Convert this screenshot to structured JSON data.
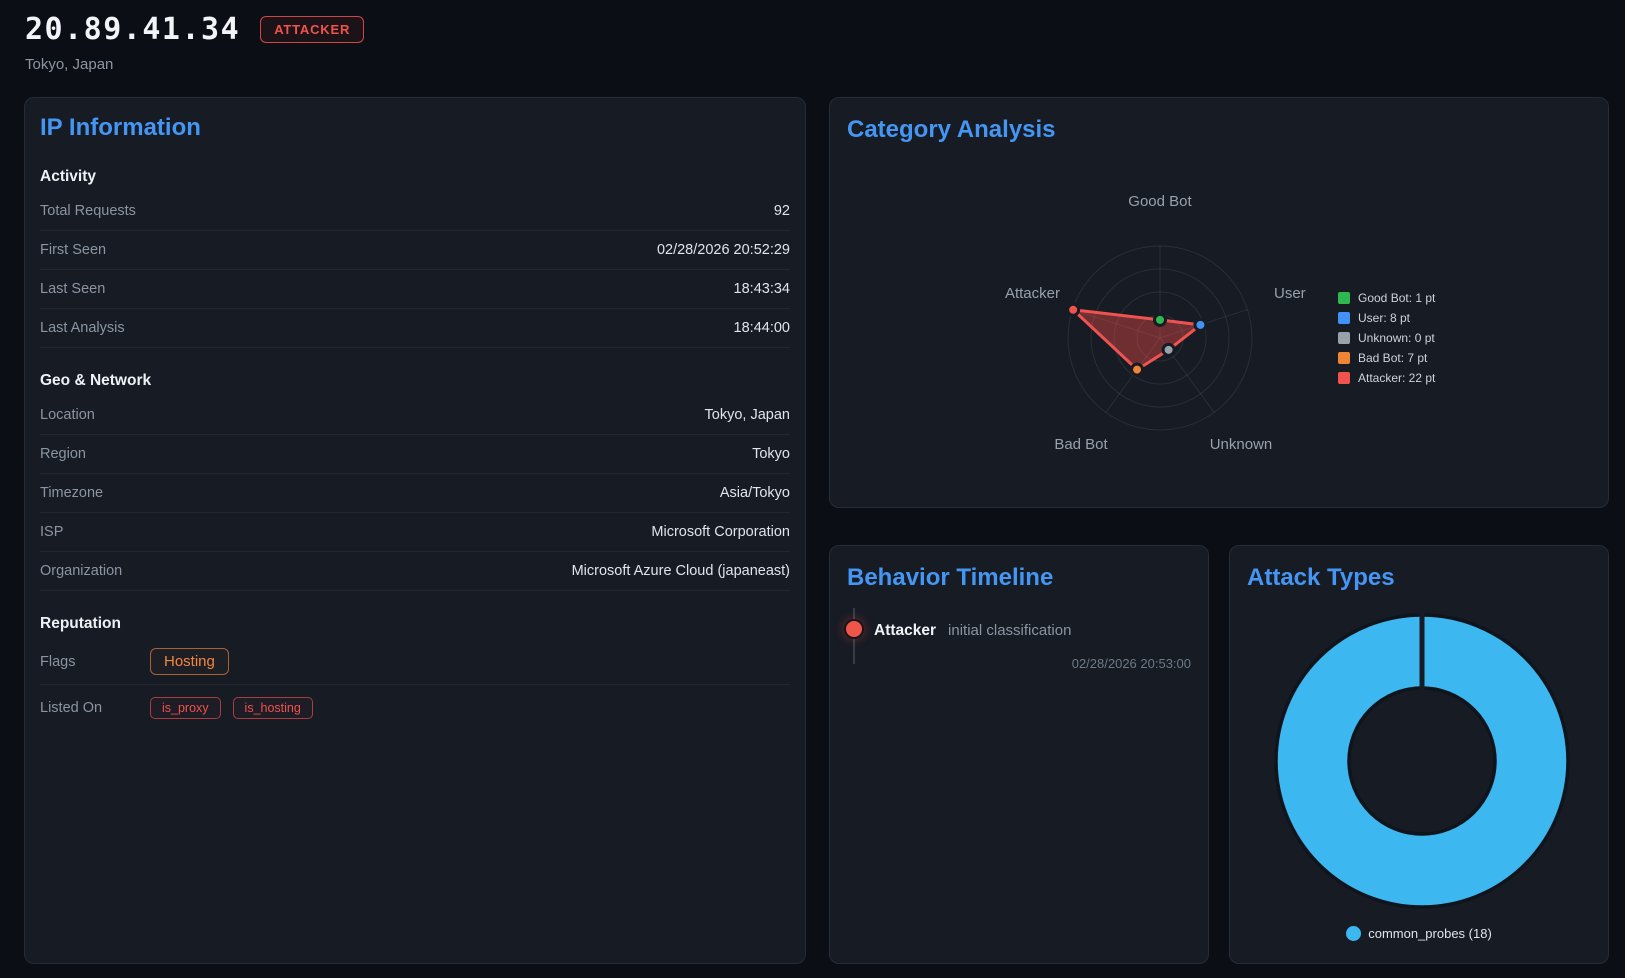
{
  "header": {
    "ip": "20.89.41.34",
    "badge": "ATTACKER",
    "location": "Tokyo, Japan"
  },
  "ip_information": {
    "title": "IP Information",
    "sections": [
      {
        "heading": "Activity",
        "rows": [
          {
            "label": "Total Requests",
            "value": "92"
          },
          {
            "label": "First Seen",
            "value": "02/28/2026 20:52:29"
          },
          {
            "label": "Last Seen",
            "value": "18:43:34"
          },
          {
            "label": "Last Analysis",
            "value": "18:44:00"
          }
        ]
      },
      {
        "heading": "Geo & Network",
        "rows": [
          {
            "label": "Location",
            "value": "Tokyo, Japan"
          },
          {
            "label": "Region",
            "value": "Tokyo"
          },
          {
            "label": "Timezone",
            "value": "Asia/Tokyo"
          },
          {
            "label": "ISP",
            "value": "Microsoft Corporation"
          },
          {
            "label": "Organization",
            "value": "Microsoft Azure Cloud (japaneast)"
          }
        ]
      },
      {
        "heading": "Reputation",
        "rows": [
          {
            "label": "Flags",
            "badges": [
              {
                "text": "Hosting",
                "style": "orange"
              }
            ]
          },
          {
            "label": "Listed On",
            "badges": [
              {
                "text": "is_proxy",
                "style": "red"
              },
              {
                "text": "is_hosting",
                "style": "red"
              }
            ]
          }
        ]
      }
    ]
  },
  "behavior_timeline": {
    "title": "Behavior Timeline",
    "events": [
      {
        "category": "Attacker",
        "description": "initial classification",
        "timestamp": "02/28/2026 20:53:00",
        "color": "#f0554a"
      }
    ]
  },
  "chart_data": [
    {
      "type": "radar",
      "title": "Category Analysis",
      "categories": [
        "Good Bot",
        "User",
        "Unknown",
        "Bad Bot",
        "Attacker"
      ],
      "values": [
        1,
        8,
        0,
        7,
        22
      ],
      "unit": "pt",
      "legend": [
        "Good Bot: 1 pt",
        "User: 8 pt",
        "Unknown: 0 pt",
        "Bad Bot: 7 pt",
        "Attacker: 22 pt"
      ],
      "legend_position": "right",
      "point_colors": [
        "#2eb850",
        "#4291f5",
        "#99a1ab",
        "#ee8434",
        "#f0524d"
      ],
      "series_color": "#ef5350",
      "fill_color": "rgba(235,77,72,0.42)",
      "grid": "polar",
      "axis_range": [
        0,
        22
      ]
    },
    {
      "type": "donut",
      "title": "Attack Types",
      "categories": [
        "common_probes"
      ],
      "values": [
        18
      ],
      "colors": [
        "#3cb7ef"
      ],
      "legend": [
        "common_probes (18)"
      ],
      "legend_position": "bottom"
    }
  ],
  "colors": {
    "accent_blue": "#4596f3",
    "alert_red": "#f0524d",
    "warn_orange": "#f28742"
  }
}
